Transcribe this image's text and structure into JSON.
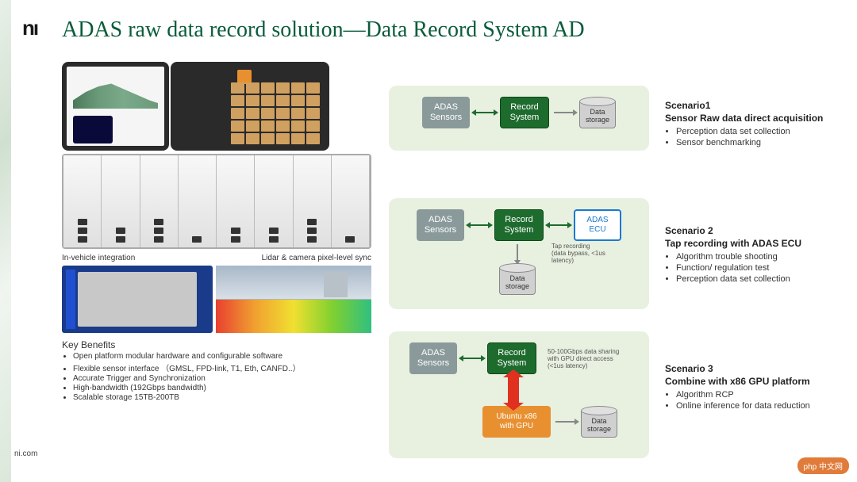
{
  "logo": "nı",
  "title": "ADAS raw data record solution—Data Record System AD",
  "footer": "ni.com",
  "subcaptions": {
    "left": "In-vehicle integration",
    "right": "Lidar & camera pixel-level sync"
  },
  "key_benefits": {
    "heading": "Key Benefits",
    "items": [
      "Open platform modular hardware and configurable software",
      "Flexible sensor interface （GMSL, FPD-link, T1, Eth, CANFD..）",
      "Accurate Trigger and Synchronization",
      "High-bandwidth (192Gbps bandwidth)",
      "Scalable storage 15TB-200TB"
    ]
  },
  "colors": {
    "title": "#0a5c3a",
    "diag_bg": "#e8f0e0",
    "box_gray": "#8a9a9a",
    "box_green": "#1e6b2e",
    "box_blue_border": "#1a7ad0",
    "box_orange": "#e89030",
    "arrow_green": "#1e6b2e",
    "arrow_red": "#e03020"
  },
  "nodes": {
    "sensors": "ADAS\nSensors",
    "record": "Record\nSystem",
    "storage": "Data\nstorage",
    "ecu": "ADAS\nECU",
    "ubuntu": "Ubuntu x86\nwith GPU"
  },
  "diagram_notes": {
    "d2": "Tap recording\n(data bypass, <1us latency)",
    "d3": "50-100Gbps data sharing\nwith GPU direct access\n(<1us latency)"
  },
  "scenarios": [
    {
      "title": "Scenario1",
      "subtitle": "Sensor Raw data direct acquisition",
      "bullets": [
        "Perception data set collection",
        "Sensor benchmarking"
      ]
    },
    {
      "title": "Scenario 2",
      "subtitle": "Tap recording with ADAS ECU",
      "bullets": [
        "Algorithm trouble shooting",
        "Function/ regulation test",
        "Perception data set collection"
      ]
    },
    {
      "title": "Scenario 3",
      "subtitle": "Combine with x86 GPU platform",
      "bullets": [
        "Algorithm RCP",
        "Online inference for data reduction"
      ]
    }
  ],
  "badge": "php 中文网"
}
